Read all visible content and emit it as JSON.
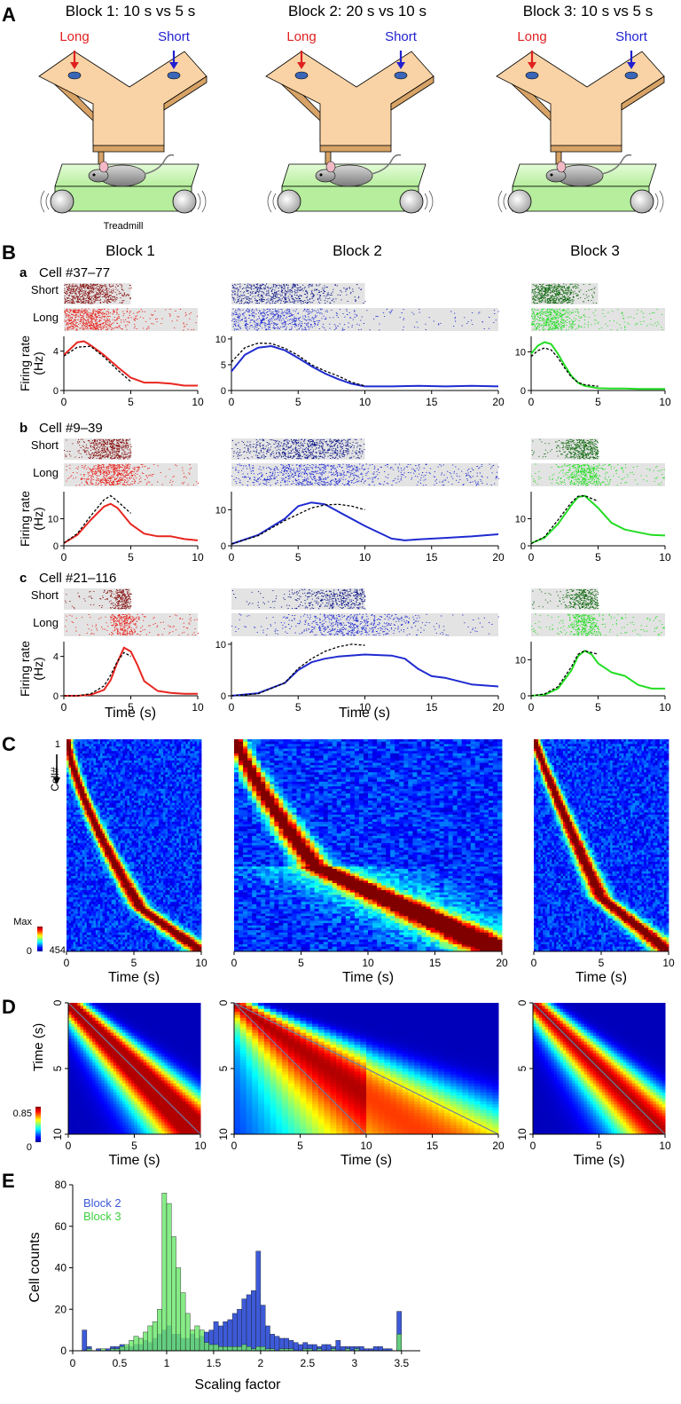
{
  "panel_letters": {
    "A": "A",
    "B": "B",
    "C": "C",
    "D": "D",
    "E": "E"
  },
  "panelA": {
    "blocks": [
      "Block 1: 10 s vs 5 s",
      "Block 2: 20 s vs 10 s",
      "Block 3: 10 s vs 5 s"
    ],
    "long_label": "Long",
    "short_label": "Short",
    "treadmill_label": "Treadmill"
  },
  "panelB": {
    "column_titles": [
      "Block 1",
      "Block 2",
      "Block 3"
    ],
    "cells": [
      {
        "letter": "a",
        "title": "Cell #37–77"
      },
      {
        "letter": "b",
        "title": "Cell #9–39"
      },
      {
        "letter": "c",
        "title": "Cell #21–116"
      }
    ],
    "row_short": "Short",
    "row_long": "Long",
    "ylabel_line1": "Firing rate",
    "ylabel_line2": "(Hz)",
    "xlabel": "Time (s)",
    "colors": {
      "block1": "#e8251f",
      "block1_dark": "#8b1a1a",
      "block2": "#1f2bd0",
      "block2_dark": "#101a8a",
      "block3": "#22dd22",
      "block3_dark": "#136b13"
    }
  },
  "panelC": {
    "xlabel": "Time (s)",
    "cell_label": "Cell#",
    "row_top": "1",
    "row_bottom": "454",
    "cbar_max": "Max",
    "cbar_min": "0"
  },
  "panelD": {
    "xlabel": "Time (s)",
    "ylabel": "Time (s)",
    "cbar_max": "0.85",
    "cbar_min": "0"
  },
  "panelE": {
    "legend": [
      "Block 2",
      "Block 3"
    ],
    "xlabel": "Scaling factor",
    "ylabel": "Cell counts",
    "colors": {
      "block2": "#3d5ad8",
      "block3": "#6de86d"
    }
  },
  "chart_data": [
    {
      "type": "line",
      "title": "Cell #37–77",
      "xlabel": "Time (s)",
      "ylabel": "Firing rate (Hz)",
      "panels": [
        {
          "block": "Block 1",
          "xlim": [
            0,
            10
          ],
          "ylim": [
            0,
            5.5
          ],
          "yticks": [
            0,
            4
          ],
          "xticks": [
            0,
            5,
            10
          ],
          "x": [
            0,
            1,
            1.5,
            2,
            3,
            4,
            5,
            6,
            7,
            8,
            9,
            10
          ],
          "y": [
            3.6,
            4.9,
            5.0,
            4.6,
            3.6,
            2.4,
            1.3,
            0.8,
            0.8,
            0.7,
            0.5,
            0.5
          ],
          "x_dotted": [
            0,
            1,
            2,
            3,
            4,
            5
          ],
          "y_dotted": [
            3.5,
            4.4,
            4.5,
            3.4,
            2.1,
            0.9
          ]
        },
        {
          "block": "Block 2",
          "xlim": [
            0,
            20
          ],
          "ylim": [
            0,
            10.5
          ],
          "yticks": [
            0,
            5,
            10
          ],
          "xticks": [
            0,
            5,
            10,
            15,
            20
          ],
          "x": [
            0,
            1,
            2,
            3,
            4,
            5,
            6,
            7,
            8,
            9,
            10,
            12,
            14,
            16,
            18,
            20
          ],
          "y": [
            3.7,
            6.9,
            8.3,
            8.6,
            7.8,
            6.3,
            4.7,
            3.3,
            2.2,
            1.3,
            0.8,
            0.8,
            0.9,
            0.8,
            0.9,
            0.8
          ],
          "x_dotted": [
            0,
            1,
            2,
            3,
            4,
            5,
            6,
            7,
            8,
            9,
            10
          ],
          "y_dotted": [
            5.5,
            8.3,
            9.2,
            9.1,
            8.2,
            6.8,
            5.0,
            3.8,
            2.8,
            1.6,
            0.9
          ]
        },
        {
          "block": "Block 3",
          "xlim": [
            0,
            10
          ],
          "ylim": [
            0,
            14
          ],
          "yticks": [
            0,
            10
          ],
          "xticks": [
            0,
            5,
            10
          ],
          "x": [
            0,
            0.5,
            1,
            1.5,
            2,
            2.5,
            3,
            3.5,
            4,
            5,
            6,
            7,
            8,
            9,
            10
          ],
          "y": [
            9.5,
            11.6,
            12.5,
            12.0,
            9.5,
            6.5,
            3.8,
            2.0,
            1.2,
            0.6,
            0.5,
            0.5,
            0.4,
            0.4,
            0.4
          ],
          "x_dotted": [
            0,
            0.5,
            1,
            1.5,
            2,
            2.5,
            3,
            3.5,
            4,
            5
          ],
          "y_dotted": [
            8.8,
            10.3,
            11.0,
            10.5,
            8.5,
            5.8,
            3.5,
            2.1,
            1.5,
            1.1
          ]
        }
      ]
    },
    {
      "type": "line",
      "title": "Cell #9–39",
      "xlabel": "Time (s)",
      "ylabel": "Firing rate (Hz)",
      "panels": [
        {
          "block": "Block 1",
          "xlim": [
            0,
            10
          ],
          "ylim": [
            0,
            20
          ],
          "yticks": [
            0,
            10
          ],
          "xticks": [
            0,
            5,
            10
          ],
          "x": [
            0,
            1,
            2,
            3,
            3.5,
            4,
            5,
            6,
            7,
            8,
            9,
            10
          ],
          "y": [
            1,
            4,
            9.5,
            14.5,
            15.5,
            14,
            8,
            4.5,
            3.5,
            3.5,
            2.5,
            2
          ],
          "x_dotted": [
            0,
            1,
            2,
            3,
            3.5,
            4,
            5
          ],
          "y_dotted": [
            1,
            4.5,
            11,
            17,
            18.5,
            16.5,
            12
          ]
        },
        {
          "block": "Block 2",
          "xlim": [
            0,
            20
          ],
          "ylim": [
            0,
            15
          ],
          "yticks": [
            0,
            10
          ],
          "xticks": [
            0,
            5,
            10,
            15,
            20
          ],
          "x": [
            0,
            2,
            4,
            5,
            6,
            7,
            8,
            10,
            12,
            13,
            14,
            16,
            18,
            20
          ],
          "y": [
            0.5,
            3,
            7.5,
            11,
            12,
            11.5,
            9.5,
            5.5,
            2,
            1.5,
            1.8,
            2.2,
            2.6,
            3.2
          ],
          "x_dotted": [
            0,
            2,
            4,
            6,
            7,
            8,
            9,
            10
          ],
          "y_dotted": [
            0.5,
            2.8,
            7,
            10.5,
            11.3,
            11.5,
            11,
            10
          ]
        },
        {
          "block": "Block 3",
          "xlim": [
            0,
            10
          ],
          "ylim": [
            0,
            20
          ],
          "yticks": [
            0,
            10
          ],
          "xticks": [
            0,
            5,
            10
          ],
          "x": [
            0,
            1,
            2,
            3,
            3.5,
            4,
            5,
            6,
            7,
            8,
            9,
            10
          ],
          "y": [
            1,
            3,
            8,
            15,
            18,
            18.5,
            14,
            8.5,
            6,
            5,
            4,
            3.8
          ],
          "x_dotted": [
            0,
            1,
            2,
            3,
            3.5,
            4,
            5
          ],
          "y_dotted": [
            0.8,
            3.3,
            9.5,
            16,
            18.3,
            18.5,
            16.5
          ]
        }
      ]
    },
    {
      "type": "line",
      "title": "Cell #21–116",
      "xlabel": "Time (s)",
      "ylabel": "Firing rate (Hz)",
      "panels": [
        {
          "block": "Block 1",
          "xlim": [
            0,
            10
          ],
          "ylim": [
            0,
            5.5
          ],
          "yticks": [
            0,
            4
          ],
          "xticks": [
            0,
            5,
            10
          ],
          "x": [
            0,
            1,
            2,
            3,
            3.5,
            4,
            4.5,
            5,
            5.5,
            6,
            7,
            8,
            9,
            10
          ],
          "y": [
            0,
            0,
            0.1,
            0.6,
            1.6,
            3.4,
            4.9,
            4.5,
            3.1,
            1.5,
            0.5,
            0.3,
            0.2,
            0.2
          ],
          "x_dotted": [
            0,
            1,
            2,
            3,
            3.5,
            4,
            4.5,
            5
          ],
          "y_dotted": [
            0,
            0,
            0.2,
            1.0,
            2.1,
            3.5,
            4.4,
            4.0
          ]
        },
        {
          "block": "Block 2",
          "xlim": [
            0,
            20
          ],
          "ylim": [
            0,
            10.5
          ],
          "yticks": [
            0,
            10
          ],
          "xticks": [
            0,
            5,
            10,
            15,
            20
          ],
          "x": [
            0,
            2,
            4,
            5,
            6,
            7,
            8,
            10,
            12,
            13,
            14,
            15,
            16,
            18,
            20
          ],
          "y": [
            0,
            0.5,
            2.5,
            5,
            6.5,
            7.2,
            7.6,
            8.0,
            7.8,
            7.2,
            5.2,
            3.8,
            3.5,
            2.2,
            1.8
          ],
          "x_dotted": [
            0,
            2,
            4,
            5,
            6,
            7,
            8,
            9,
            10
          ],
          "y_dotted": [
            0,
            0.4,
            2.5,
            5.3,
            7.2,
            8.6,
            9.5,
            10,
            9.8
          ]
        },
        {
          "block": "Block 3",
          "xlim": [
            0,
            10
          ],
          "ylim": [
            0,
            15
          ],
          "yticks": [
            0,
            10
          ],
          "xticks": [
            0,
            5,
            10
          ],
          "x": [
            0,
            1,
            2,
            3,
            3.5,
            4,
            4.5,
            5,
            6,
            7,
            8,
            9,
            10
          ],
          "y": [
            0,
            0.3,
            2,
            7,
            11,
            12.5,
            11.5,
            9,
            6.5,
            5.5,
            3,
            2,
            2
          ],
          "x_dotted": [
            0,
            1,
            2,
            3,
            3.5,
            4,
            4.5,
            5
          ],
          "y_dotted": [
            0,
            0.5,
            2.5,
            8,
            11.5,
            12.5,
            12,
            11.5
          ]
        }
      ]
    },
    {
      "type": "bar",
      "xlabel": "Scaling factor",
      "ylabel": "Cell counts",
      "xlim": [
        0,
        3.7
      ],
      "ylim": [
        0,
        80
      ],
      "xticks": [
        0,
        0.5,
        1,
        1.5,
        2,
        2.5,
        3,
        3.5
      ],
      "yticks": [
        0,
        20,
        40,
        60,
        80
      ],
      "bin_width": 0.05,
      "bin_starts": [
        0.1,
        0.15,
        0.2,
        0.25,
        0.3,
        0.35,
        0.4,
        0.45,
        0.5,
        0.55,
        0.6,
        0.65,
        0.7,
        0.75,
        0.8,
        0.85,
        0.9,
        0.95,
        1.0,
        1.05,
        1.1,
        1.15,
        1.2,
        1.25,
        1.3,
        1.35,
        1.4,
        1.45,
        1.5,
        1.55,
        1.6,
        1.65,
        1.7,
        1.75,
        1.8,
        1.85,
        1.9,
        1.95,
        2.0,
        2.05,
        2.1,
        2.15,
        2.2,
        2.25,
        2.3,
        2.35,
        2.4,
        2.45,
        2.5,
        2.55,
        2.6,
        2.65,
        2.7,
        2.75,
        2.8,
        2.85,
        2.9,
        2.95,
        3.0,
        3.05,
        3.1,
        3.15,
        3.2,
        3.25,
        3.3,
        3.35,
        3.4,
        3.45
      ],
      "series": [
        {
          "name": "Block 2",
          "values": [
            10,
            2,
            0,
            1,
            0,
            1,
            2,
            2,
            3,
            2,
            2,
            3,
            3,
            5,
            4,
            6,
            8,
            10,
            12,
            8,
            8,
            6,
            6,
            8,
            6,
            7,
            9,
            10,
            14,
            12,
            14,
            15,
            18,
            20,
            25,
            27,
            29,
            48,
            22,
            12,
            8,
            7,
            6,
            6,
            5,
            4,
            3,
            4,
            3,
            3,
            2,
            3,
            3,
            2,
            5,
            2,
            2,
            2,
            2,
            2,
            1,
            1,
            2,
            2,
            1,
            1,
            0,
            19
          ]
        },
        {
          "name": "Block 3",
          "values": [
            0,
            1,
            0,
            0,
            1,
            0,
            1,
            1,
            2,
            3,
            5,
            7,
            6,
            9,
            12,
            14,
            20,
            76,
            71,
            55,
            40,
            28,
            18,
            10,
            12,
            10,
            4,
            3,
            3,
            2,
            2,
            2,
            2,
            2,
            3,
            2,
            1,
            2,
            2,
            1,
            1,
            0,
            1,
            1,
            1,
            0,
            0,
            1,
            1,
            0,
            1,
            0,
            0,
            1,
            0,
            0,
            1,
            0,
            1,
            0,
            0,
            0,
            0,
            0,
            0,
            0,
            0,
            8
          ]
        }
      ]
    }
  ]
}
